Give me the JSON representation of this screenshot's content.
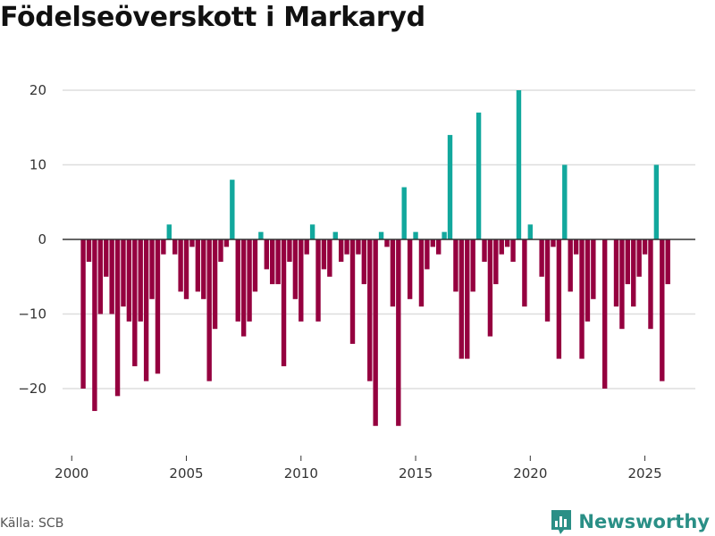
{
  "source": "Källa: SCB",
  "brand": {
    "name": "Newsworthy"
  },
  "colors": {
    "positive": "#12a89d",
    "negative": "#95003f",
    "grid": "#dddddd",
    "zero": "#333333"
  },
  "chart_data": {
    "type": "bar",
    "title": "Födelseöverskott i Markaryd",
    "xlabel": "",
    "ylabel": "",
    "ylim": [
      -28,
      22
    ],
    "xlim": [
      1999.6,
      2027.2
    ],
    "yticks": [
      20,
      10,
      0,
      -10,
      -20
    ],
    "ytick_labels": [
      "20",
      "10",
      "0",
      "−10",
      "−20"
    ],
    "xticks": [
      2000,
      2005,
      2010,
      2015,
      2020,
      2025
    ],
    "xtick_labels": [
      "2000",
      "2005",
      "2010",
      "2015",
      "2020",
      "2025"
    ],
    "grid": true,
    "frequency": "monthly",
    "start_year": 2000.5,
    "series": [
      {
        "name": "Födelseöverskott",
        "values": [
          -20,
          -3,
          -23,
          -10,
          -5,
          -10,
          -21,
          -9,
          -11,
          -17,
          -11,
          -19,
          -8,
          -18,
          -2,
          2,
          -2,
          -7,
          -8,
          -1,
          -7,
          -8,
          -19,
          -12,
          -3,
          -1,
          8,
          -11,
          -13,
          -11,
          -7,
          1,
          -4,
          -6,
          -6,
          -17,
          -3,
          -8,
          -11,
          -2,
          2,
          -11,
          -4,
          -5,
          1,
          -3,
          -2,
          -14,
          -2,
          -6,
          -19,
          -25,
          1,
          -1,
          -9,
          -25,
          7,
          -8,
          1,
          -9,
          -4,
          -1,
          -2,
          1,
          14,
          -7,
          -16,
          -16,
          -7,
          17,
          -3,
          -13,
          -6,
          -2,
          -1,
          -3,
          20,
          -9,
          2,
          0,
          -5,
          -11,
          -1,
          -16,
          10,
          -7,
          -2,
          -16,
          -11,
          -8,
          0,
          -20,
          0,
          -9,
          -12,
          -6,
          -9,
          -5,
          -2,
          -12,
          10,
          -19,
          -6
        ]
      }
    ]
  }
}
